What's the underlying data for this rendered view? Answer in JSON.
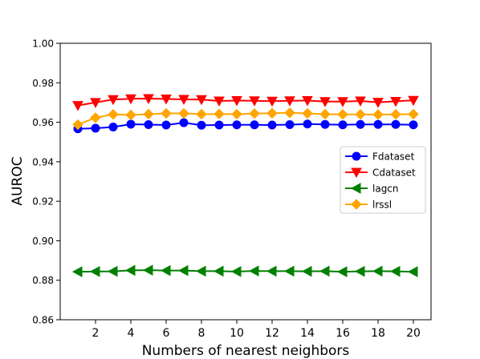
{
  "chart_data": {
    "type": "line",
    "title": "",
    "xlabel": "Numbers of nearest neighbors",
    "ylabel": "AUROC",
    "xlim": [
      0.0,
      21.0
    ],
    "ylim": [
      0.86,
      1.0
    ],
    "x": [
      1,
      2,
      3,
      4,
      5,
      6,
      7,
      8,
      9,
      10,
      11,
      12,
      13,
      14,
      15,
      16,
      17,
      18,
      19,
      20
    ],
    "xticks": [
      2,
      4,
      6,
      8,
      10,
      12,
      14,
      16,
      18,
      20
    ],
    "xtick_labels": [
      "2",
      "4",
      "6",
      "8",
      "10",
      "12",
      "14",
      "16",
      "18",
      "20"
    ],
    "yticks": [
      0.86,
      0.88,
      0.9,
      0.92,
      0.94,
      0.96,
      0.98,
      1.0
    ],
    "ytick_labels": [
      "0.86",
      "0.88",
      "0.90",
      "0.92",
      "0.94",
      "0.96",
      "0.98",
      "1.00"
    ],
    "grid": false,
    "legend_position": "center-right",
    "series": [
      {
        "name": "Fdataset",
        "color": "#0000ff",
        "marker": "circle",
        "values": [
          0.9567,
          0.957,
          0.9576,
          0.959,
          0.9588,
          0.9586,
          0.9598,
          0.9585,
          0.9586,
          0.9587,
          0.9587,
          0.9586,
          0.9588,
          0.9591,
          0.9589,
          0.9587,
          0.9589,
          0.9589,
          0.9589,
          0.9587
        ]
      },
      {
        "name": "Cdataset",
        "color": "#ff0000",
        "marker": "triangle-down",
        "values": [
          0.9685,
          0.97,
          0.9715,
          0.9719,
          0.972,
          0.9718,
          0.9716,
          0.9715,
          0.9708,
          0.971,
          0.9709,
          0.9707,
          0.9709,
          0.971,
          0.9705,
          0.9705,
          0.9708,
          0.9701,
          0.9706,
          0.9711
        ]
      },
      {
        "name": "lagcn",
        "color": "#008000",
        "marker": "triangle-left",
        "values": [
          0.8843,
          0.8844,
          0.8845,
          0.885,
          0.8851,
          0.8849,
          0.8849,
          0.8846,
          0.8846,
          0.8844,
          0.8847,
          0.8846,
          0.8846,
          0.8845,
          0.8846,
          0.8843,
          0.8845,
          0.8846,
          0.8845,
          0.8843
        ]
      },
      {
        "name": "lrssl",
        "color": "#ffa500",
        "marker": "diamond",
        "values": [
          0.9588,
          0.9623,
          0.964,
          0.9637,
          0.9641,
          0.9645,
          0.9645,
          0.9641,
          0.9642,
          0.9641,
          0.9644,
          0.9646,
          0.9648,
          0.9645,
          0.9641,
          0.964,
          0.964,
          0.9639,
          0.964,
          0.9641
        ]
      }
    ]
  }
}
